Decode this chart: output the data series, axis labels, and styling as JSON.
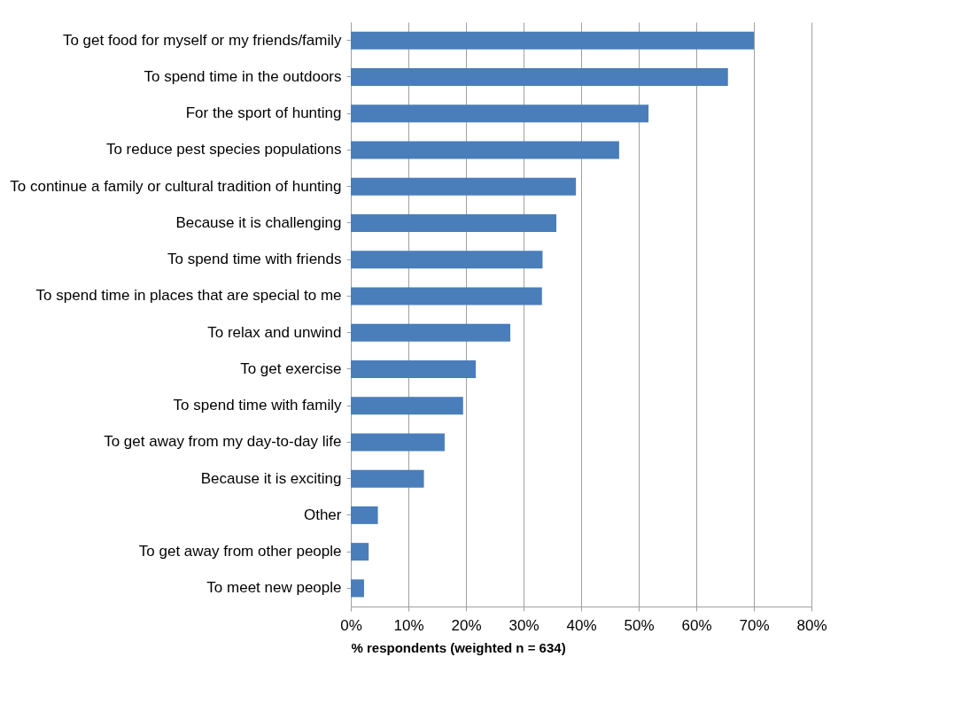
{
  "chart_data": {
    "type": "bar",
    "orientation": "horizontal",
    "xlabel": "% respondents (weighted n = 634)",
    "categories": [
      "To get food for myself or my friends/family",
      "To spend time in the outdoors",
      "For the sport of hunting",
      "To reduce pest species populations",
      "To continue a family or cultural tradition of hunting",
      "Because it is challenging",
      "To spend time with friends",
      "To spend time in places that are special to me",
      "To relax and unwind",
      "To get exercise",
      "To spend time with family",
      "To get away from my day-to-day life",
      "Because it is exciting",
      "Other",
      "To get away from other people",
      "To meet new people"
    ],
    "values": [
      70,
      65.5,
      51.7,
      46.6,
      39.1,
      35.7,
      33.3,
      33.2,
      27.7,
      21.7,
      19.5,
      16.3,
      12.7,
      4.7,
      3.1,
      2.3
    ],
    "color": "#4a7ebb",
    "xlim": [
      0,
      80
    ],
    "xticks": [
      {
        "value": 0,
        "label": "0%"
      },
      {
        "value": 10,
        "label": "10%"
      },
      {
        "value": 20,
        "label": "20%"
      },
      {
        "value": 30,
        "label": "30%"
      },
      {
        "value": 40,
        "label": "40%"
      },
      {
        "value": 50,
        "label": "50%"
      },
      {
        "value": 60,
        "label": "60%"
      },
      {
        "value": 70,
        "label": "70%"
      },
      {
        "value": 80,
        "label": "80%"
      }
    ],
    "grid": "x"
  }
}
